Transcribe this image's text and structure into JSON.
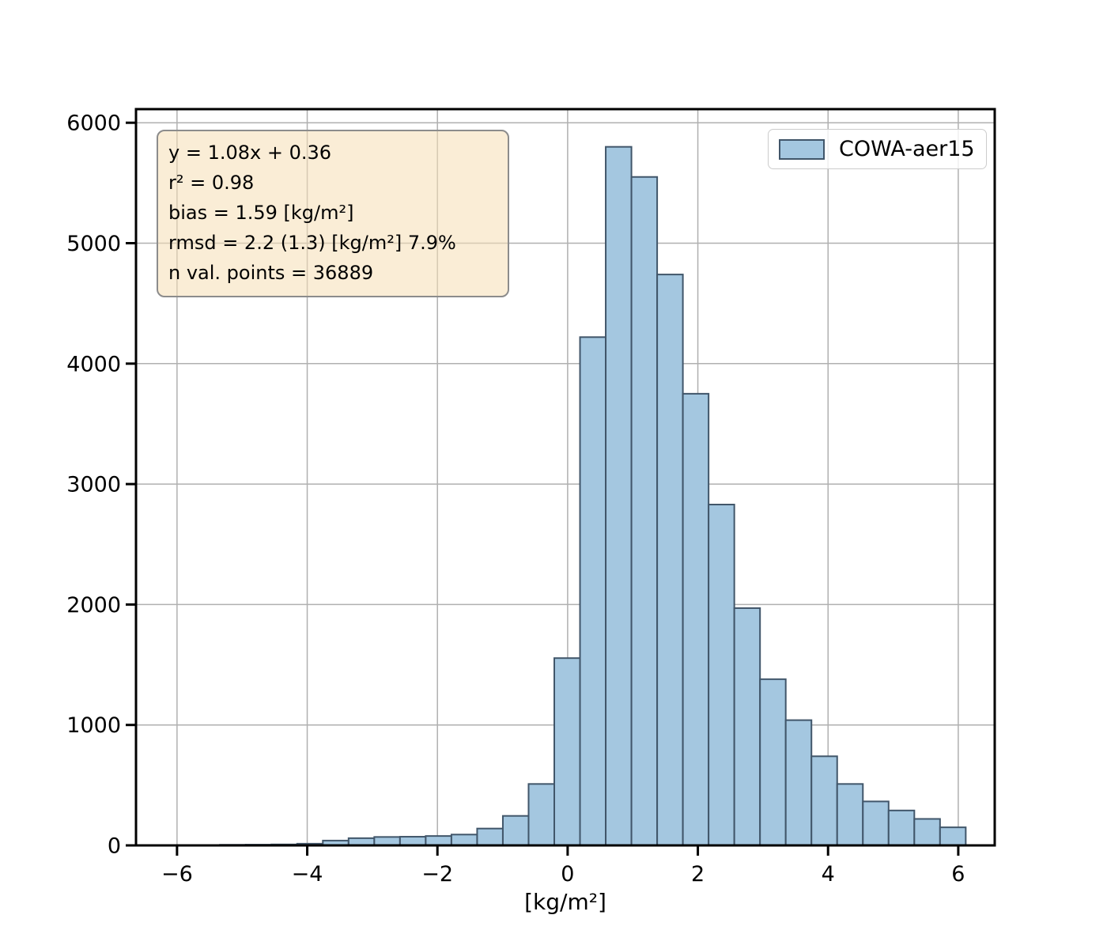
{
  "figure": {
    "background": "#ffffff"
  },
  "stats_box": {
    "lines": [
      "y = 1.08x + 0.36",
      "r² = 0.98",
      "bias = 1.59 [kg/m²]",
      "rmsd = 2.2 (1.3) [kg/m²] 7.9%",
      "n val. points = 36889"
    ],
    "background": "#f5dfb5",
    "border_color": "#8c8c8c"
  },
  "legend": {
    "label": "COWA-aer15",
    "position": "upper right"
  },
  "chart_data": {
    "type": "bar",
    "subtype": "histogram",
    "title": "",
    "xlabel": "[kg/m²]",
    "ylabel": "",
    "series_name": "COWA-aer15",
    "bin_start": -6.13,
    "bin_width": 0.395,
    "counts": [
      2,
      3,
      5,
      6,
      8,
      14,
      40,
      60,
      70,
      72,
      78,
      90,
      140,
      245,
      510,
      1555,
      4220,
      5800,
      5550,
      4740,
      3750,
      2830,
      1970,
      1380,
      1040,
      740,
      510,
      365,
      290,
      220,
      150
    ],
    "xticks": [
      -6,
      -4,
      -2,
      0,
      2,
      4,
      6
    ],
    "xtick_labels": [
      "−6",
      "−4",
      "−2",
      "0",
      "2",
      "4",
      "6"
    ],
    "yticks": [
      0,
      1000,
      2000,
      3000,
      4000,
      5000,
      6000
    ],
    "ytick_labels": [
      "0",
      "1000",
      "2000",
      "3000",
      "4000",
      "5000",
      "6000"
    ],
    "xlim": [
      -6.63,
      6.56
    ],
    "ylim": [
      0,
      6113
    ],
    "grid": true,
    "grid_color": "#b0b0b0",
    "bar_fill": "#a4c7e0",
    "bar_edge": "#41566a",
    "spine_color": "#000000",
    "tick_label_color": "#000000"
  }
}
